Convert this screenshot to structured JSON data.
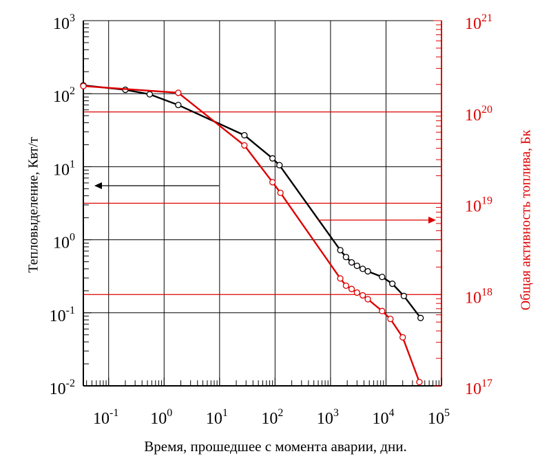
{
  "chart_data": {
    "type": "line",
    "title": "",
    "xlabel": "Время, прошедшее с момента аварии, дни.",
    "ylabel_left": "Тепловыделение, Квт/т",
    "ylabel_right": "Общая активность топлива, Бк",
    "x_scale": "log",
    "y_left_scale": "log",
    "y_right_scale": "log",
    "xlim": [
      0.035,
      100000
    ],
    "ylim_left": [
      0.01,
      1000
    ],
    "ylim_right": [
      1e+17,
      1e+21
    ],
    "grid": true,
    "x_ticks": [
      {
        "value": 0.1,
        "base": "10",
        "exp": "-1"
      },
      {
        "value": 1,
        "base": "10",
        "exp": "0"
      },
      {
        "value": 10,
        "base": "10",
        "exp": "1"
      },
      {
        "value": 100,
        "base": "10",
        "exp": "2"
      },
      {
        "value": 1000,
        "base": "10",
        "exp": "3"
      },
      {
        "value": 10000,
        "base": "10",
        "exp": "4"
      },
      {
        "value": 100000,
        "base": "10",
        "exp": "5"
      }
    ],
    "y_left_ticks": [
      {
        "value": 1000,
        "base": "10",
        "exp": "3"
      },
      {
        "value": 100,
        "base": "10",
        "exp": "2"
      },
      {
        "value": 10,
        "base": "10",
        "exp": "1"
      },
      {
        "value": 1,
        "base": "10",
        "exp": "0"
      },
      {
        "value": 0.1,
        "base": "10",
        "exp": "-1"
      },
      {
        "value": 0.01,
        "base": "10",
        "exp": "-2"
      }
    ],
    "y_right_ticks": [
      {
        "value": 1e+21,
        "base": "10",
        "exp": "21"
      },
      {
        "value": 1e+20,
        "base": "10",
        "exp": "20"
      },
      {
        "value": 1e+19,
        "base": "10",
        "exp": "19"
      },
      {
        "value": 1e+18,
        "base": "10",
        "exp": "18"
      },
      {
        "value": 1e+17,
        "base": "10",
        "exp": "17"
      }
    ],
    "series": [
      {
        "axis": "left",
        "color": "#000000",
        "x": [
          0.035,
          0.2,
          0.55,
          1.8,
          28,
          90,
          120,
          1500,
          1900,
          2400,
          3000,
          3800,
          4700,
          8500,
          13000,
          21000,
          42000
        ],
        "y": [
          130,
          113,
          98,
          70,
          27,
          13,
          10.5,
          0.72,
          0.58,
          0.49,
          0.44,
          0.4,
          0.37,
          0.31,
          0.25,
          0.17,
          0.085
        ]
      },
      {
        "axis": "right",
        "color": "#dd0000",
        "x": [
          0.035,
          1.8,
          28,
          90,
          125,
          1500,
          1900,
          2400,
          3000,
          3800,
          4700,
          8500,
          12000,
          20000,
          40000
        ],
        "y": [
          1.92e+20,
          1.62e+20,
          4.3e+19,
          1.7e+19,
          1.3e+19,
          1.5e+18,
          1.25e+18,
          1.15e+18,
          1.05e+18,
          9.8e+17,
          8.9e+17,
          6.6e+17,
          5.4e+17,
          3.4e+17,
          1.1e+17
        ]
      }
    ],
    "annotations": [
      {
        "type": "arrow",
        "direction": "left",
        "color": "#000000",
        "points_to": "left axis"
      },
      {
        "type": "arrow",
        "direction": "right",
        "color": "#dd0000",
        "points_to": "right axis"
      }
    ],
    "colors": {
      "left_series": "#000000",
      "right_series": "#dd0000",
      "grid": "#000000",
      "right_grid": "#dd0000"
    }
  }
}
